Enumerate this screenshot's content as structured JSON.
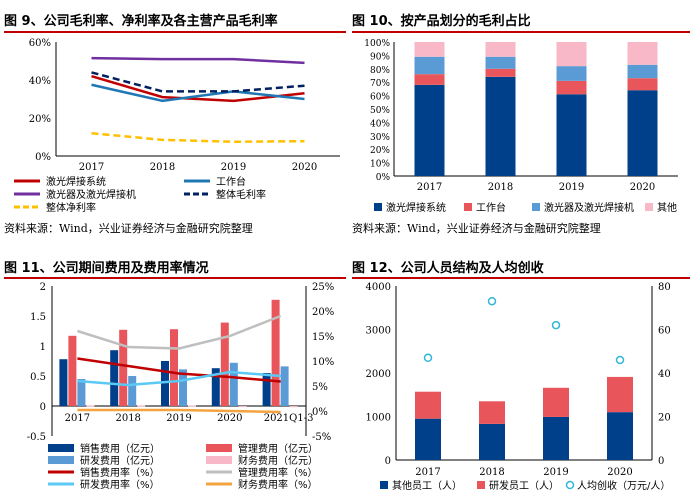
{
  "chart_data": [
    {
      "type": "line",
      "title": "图 9、公司毛利率、净利率及各主营产品毛利率",
      "categories": [
        "2017",
        "2018",
        "2019",
        "2020"
      ],
      "yticks": [
        "0%",
        "20%",
        "40%",
        "60%"
      ],
      "ylim": [
        0,
        60
      ],
      "series": [
        {
          "name": "激光焊接系统",
          "values": [
            42,
            31,
            29,
            33
          ],
          "color": "#c00000",
          "dash": "solid"
        },
        {
          "name": "工作台",
          "values": [
            37.5,
            29,
            34,
            30
          ],
          "color": "#1f77b4",
          "dash": "solid"
        },
        {
          "name": "激光器及激光焊接机",
          "values": [
            51.5,
            51,
            51,
            49
          ],
          "color": "#7030a0",
          "dash": "solid"
        },
        {
          "name": "整体毛利率",
          "values": [
            44,
            34,
            34,
            37
          ],
          "color": "#002060",
          "dash": "dashed"
        },
        {
          "name": "整体净利率",
          "values": [
            12,
            8.5,
            7.5,
            7.8
          ],
          "color": "#ffc000",
          "dash": "dashed"
        }
      ],
      "source": "资料来源：Wind，兴业证券经济与金融研究院整理"
    },
    {
      "type": "bar",
      "title": "图 10、按产品划分的毛利占比",
      "categories": [
        "2017",
        "2018",
        "2019",
        "2020"
      ],
      "yticks": [
        "0%",
        "10%",
        "20%",
        "30%",
        "40%",
        "50%",
        "60%",
        "70%",
        "80%",
        "90%",
        "100%"
      ],
      "ylim": [
        0,
        100
      ],
      "stacked": true,
      "series": [
        {
          "name": "激光焊接系统",
          "values": [
            68,
            74,
            61,
            64
          ],
          "color": "#003f8a"
        },
        {
          "name": "工作台",
          "values": [
            8,
            6,
            10,
            9
          ],
          "color": "#e8555a"
        },
        {
          "name": "激光器及激光焊接机",
          "values": [
            13,
            9,
            11,
            10
          ],
          "color": "#5b9bd5"
        },
        {
          "name": "其他",
          "values": [
            11,
            11,
            18,
            17
          ],
          "color": "#f9b8c8"
        }
      ],
      "source": "资料来源：Wind，兴业证券经济与金融研究院整理"
    },
    {
      "type": "bar",
      "title": "图 11、公司期间费用及费用率情况",
      "categories": [
        "2017",
        "2018",
        "2019",
        "2020",
        "2021Q1-3"
      ],
      "yticks_left": [
        "-0.5",
        "0",
        "0.5",
        "1",
        "1.5",
        "2"
      ],
      "ylim_left": [
        -0.5,
        2
      ],
      "yticks_right": [
        "-5%",
        "0%",
        "5%",
        "10%",
        "15%",
        "20%",
        "25%"
      ],
      "ylim_right": [
        -5,
        25
      ],
      "bar_series": [
        {
          "name": "销售费用（亿元）",
          "values": [
            0.78,
            0.93,
            0.75,
            0.63,
            0.55
          ],
          "color": "#003f8a"
        },
        {
          "name": "管理费用（亿元）",
          "values": [
            1.17,
            1.27,
            1.28,
            1.39,
            1.77
          ],
          "color": "#e8555a"
        },
        {
          "name": "研发费用（亿元）",
          "values": [
            0.45,
            0.5,
            0.61,
            0.72,
            0.66
          ],
          "color": "#5b9bd5"
        },
        {
          "name": "财务费用（亿元）",
          "values": [
            0.01,
            0.01,
            0.01,
            0.0,
            -0.02
          ],
          "color": "#f9b8c8"
        }
      ],
      "line_series": [
        {
          "name": "销售费用率（%）",
          "values": [
            10.5,
            9.0,
            7.5,
            6.8,
            5.9
          ],
          "color": "#c00000"
        },
        {
          "name": "管理费用率（%）",
          "values": [
            16.0,
            12.8,
            12.5,
            15.0,
            19.0
          ],
          "color": "#bfbfbf"
        },
        {
          "name": "研发费用率（%）",
          "values": [
            6.0,
            5.2,
            6.0,
            7.8,
            7.0
          ],
          "color": "#5bc8f5"
        },
        {
          "name": "财务费用率（%）",
          "values": [
            0.2,
            0.2,
            0.2,
            0.0,
            -0.2
          ],
          "color": "#f4a340"
        }
      ]
    },
    {
      "type": "bar",
      "title": "图 12、公司人员结构及人均创收",
      "categories": [
        "2017",
        "2018",
        "2019",
        "2020"
      ],
      "yticks_left": [
        "0",
        "1000",
        "2000",
        "3000",
        "4000"
      ],
      "ylim_left": [
        0,
        4000
      ],
      "yticks_right": [
        "0",
        "20",
        "40",
        "60",
        "80"
      ],
      "ylim_right": [
        0,
        80
      ],
      "stacked": true,
      "bar_series": [
        {
          "name": "其他员工（人）",
          "values": [
            950,
            830,
            990,
            1100
          ],
          "color": "#003f8a"
        },
        {
          "name": "研发员工（人）",
          "values": [
            620,
            520,
            670,
            810
          ],
          "color": "#e8555a"
        }
      ],
      "scatter_series": {
        "name": "人均创收（万元/人）",
        "values": [
          47,
          73,
          62,
          46
        ],
        "color": "#2fb7d8"
      }
    }
  ]
}
